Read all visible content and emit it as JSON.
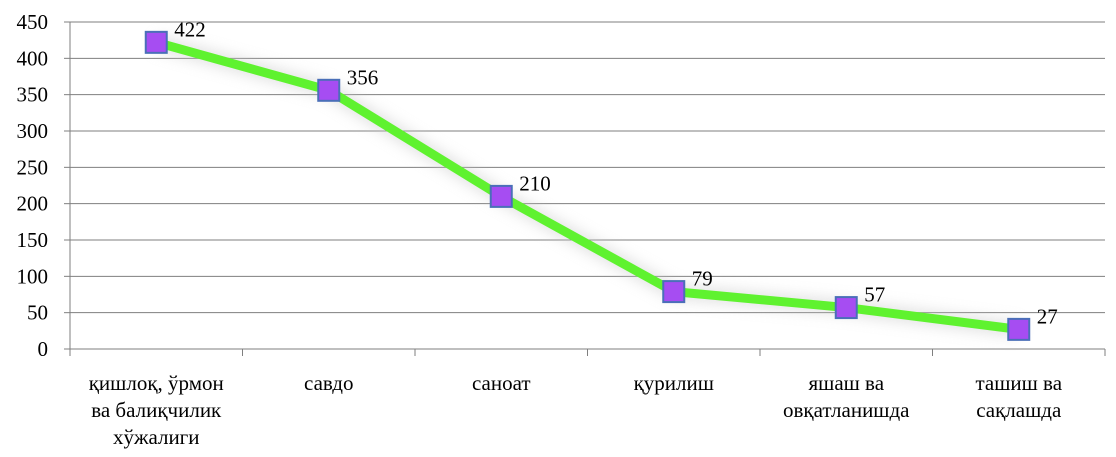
{
  "chart_data": {
    "type": "line",
    "title": "",
    "xlabel": "",
    "ylabel": "",
    "categories": [
      [
        "қишлоқ, ўрмон",
        "ва балиқчилик",
        "хўжалиги"
      ],
      [
        "савдо"
      ],
      [
        "саноат"
      ],
      [
        "қурилиш"
      ],
      [
        "яшаш ва",
        "овқатланишда"
      ],
      [
        "ташиш ва",
        "сақлашда"
      ]
    ],
    "series": [
      {
        "values": [
          422,
          356,
          210,
          79,
          57,
          27
        ]
      }
    ],
    "ylim": [
      0,
      450
    ],
    "yticks": [
      0,
      50,
      100,
      150,
      200,
      250,
      300,
      350,
      400,
      450
    ],
    "grid": true,
    "legend": "none",
    "data_labels": [
      "422",
      "356",
      "210",
      "79",
      "57",
      "27"
    ],
    "colors": {
      "line": "#5ff22f",
      "marker_fill": "#a64df2",
      "marker_stroke": "#4a6fb8",
      "grid": "#7f7f7f"
    }
  }
}
